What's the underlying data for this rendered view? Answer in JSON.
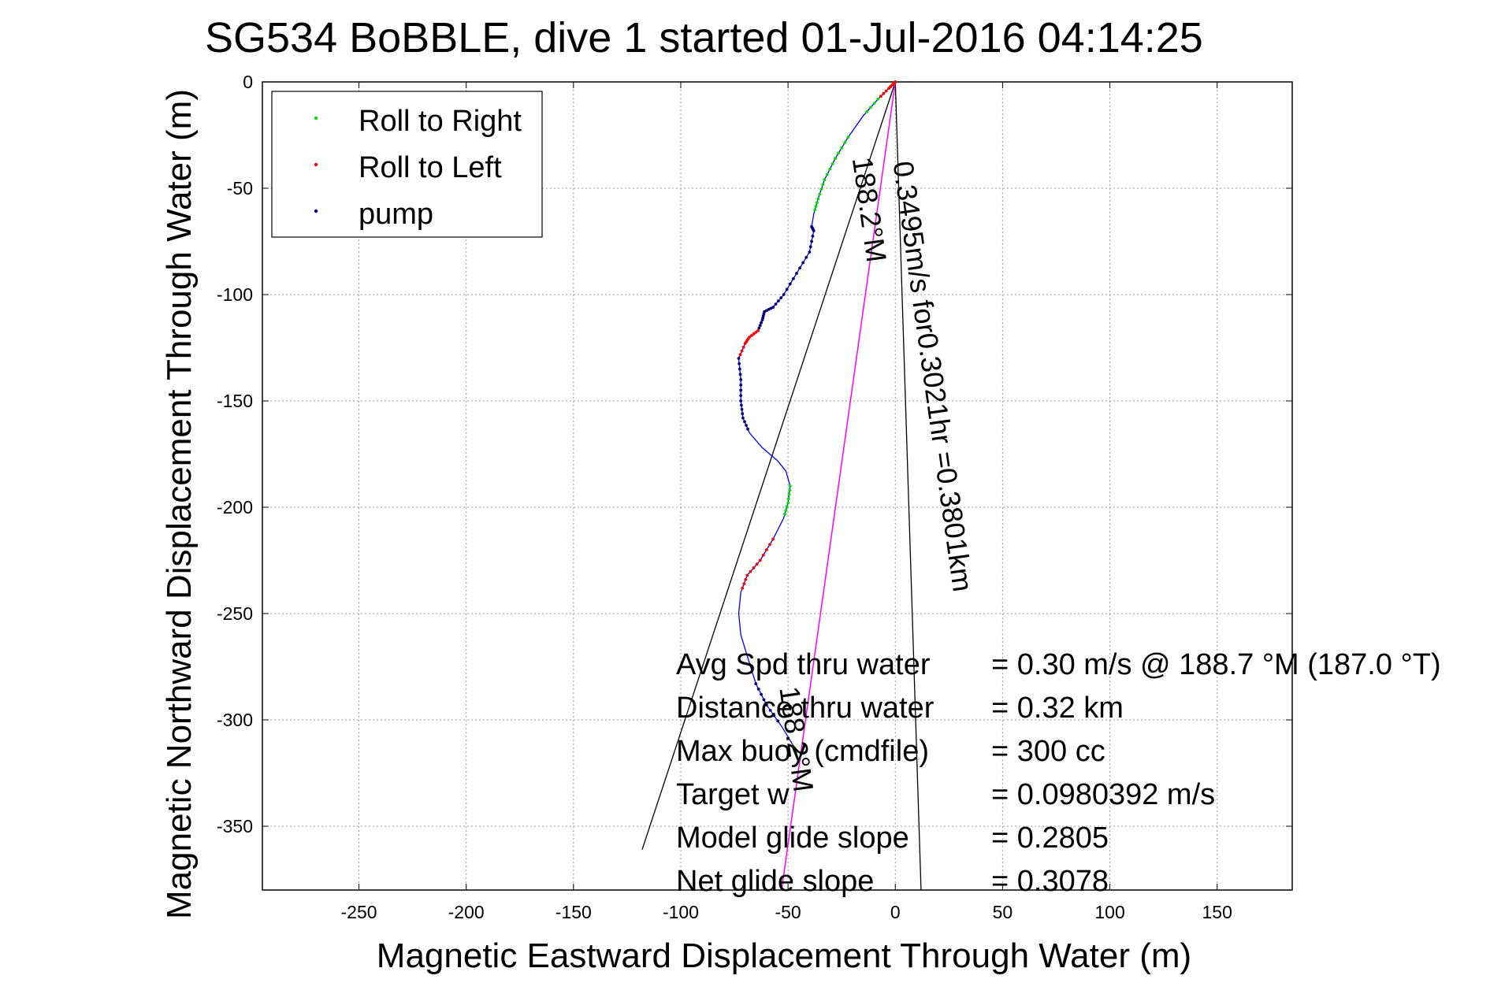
{
  "chart_data": {
    "type": "line",
    "title": "SG534 BoBBLE, dive 1 started 01-Jul-2016 04:14:25",
    "xlabel": "Magnetic Eastward Displacement Through Water (m)",
    "ylabel": "Magnetic Northward Displacement Through Water (m)",
    "xlim": [
      -295,
      185
    ],
    "ylim": [
      -380,
      0
    ],
    "xticks": [
      -250,
      -200,
      -150,
      -100,
      -50,
      0,
      50,
      100,
      150
    ],
    "yticks": [
      0,
      -50,
      -100,
      -150,
      -200,
      -250,
      -300,
      -350
    ],
    "grid": true,
    "legend_position": "top-left",
    "colors": {
      "track": "#0000ff",
      "roll_right": "#00cc00",
      "roll_left": "#ff0000",
      "pump": "#000080",
      "heading": "#ff00ff",
      "cone": "#000000"
    },
    "series": [
      {
        "name": "Roll to Right",
        "color": "#00dd00",
        "marker": "dot"
      },
      {
        "name": "Roll to Left",
        "color": "#ff0000",
        "marker": "dot"
      },
      {
        "name": "pump",
        "color": "#000080",
        "marker": "dot"
      }
    ],
    "track": {
      "x": [
        0,
        -3,
        -8,
        -15,
        -22,
        -28,
        -33,
        -36,
        -38,
        -39,
        -38,
        -40,
        -46,
        -52,
        -57,
        -61,
        -62,
        -64,
        -68,
        -70,
        -73,
        -72,
        -72,
        -71,
        -68,
        -62,
        -55,
        -51,
        -49,
        -50,
        -52,
        -57,
        -63,
        -69,
        -72,
        -73,
        -72,
        -69,
        -65,
        -60,
        -53,
        -47,
        -46
      ],
      "y": [
        0,
        -3,
        -8,
        -16,
        -26,
        -36,
        -46,
        -55,
        -62,
        -68,
        -70,
        -80,
        -90,
        -100,
        -106,
        -108,
        -112,
        -117,
        -120,
        -123,
        -130,
        -140,
        -150,
        -158,
        -165,
        -172,
        -178,
        -183,
        -190,
        -198,
        -205,
        -215,
        -225,
        -232,
        -240,
        -250,
        -260,
        -270,
        -283,
        -293,
        -303,
        -313,
        -316
      ]
    },
    "segments": {
      "roll_right": [
        [
          0,
          3
        ],
        [
          4,
          8
        ],
        [
          28,
          30
        ],
        [
          41,
          42
        ]
      ],
      "roll_left": [
        [
          0,
          2
        ],
        [
          17,
          20
        ],
        [
          31,
          34
        ]
      ],
      "pump": [
        [
          9,
          17
        ],
        [
          20,
          24
        ],
        [
          38,
          40
        ]
      ]
    },
    "heading_line": {
      "x": [
        0,
        -53
      ],
      "y": [
        0,
        -380
      ]
    },
    "cone_lines": [
      {
        "x": [
          0,
          -118
        ],
        "y": [
          0,
          -361
        ]
      },
      {
        "x": [
          0,
          12
        ],
        "y": [
          0,
          -380
        ]
      }
    ],
    "annotations": [
      {
        "text": "0.3495m/s for0.3021hr =0.3801km",
        "x": -1,
        "y": -38,
        "rotation": -98
      },
      {
        "text": "188.2°M",
        "x": -20,
        "y": -36,
        "rotation": -98
      },
      {
        "text": "188.2°M",
        "x": -54,
        "y": -285,
        "rotation": -98
      }
    ],
    "stats": [
      {
        "label": "Avg Spd thru water",
        "value": "=  0.30 m/s @ 188.7 °M (187.0 °T)"
      },
      {
        "label": "Distance thru water",
        "value": "=  0.32 km"
      },
      {
        "label": "Max buoy (cmdfile)",
        "value": "= 300 cc"
      },
      {
        "label": "Target w",
        "value": "= 0.0980392 m/s"
      },
      {
        "label": "Model glide slope",
        "value": "= 0.2805"
      },
      {
        "label": "Net glide slope",
        "value": "= 0.3078"
      }
    ]
  }
}
